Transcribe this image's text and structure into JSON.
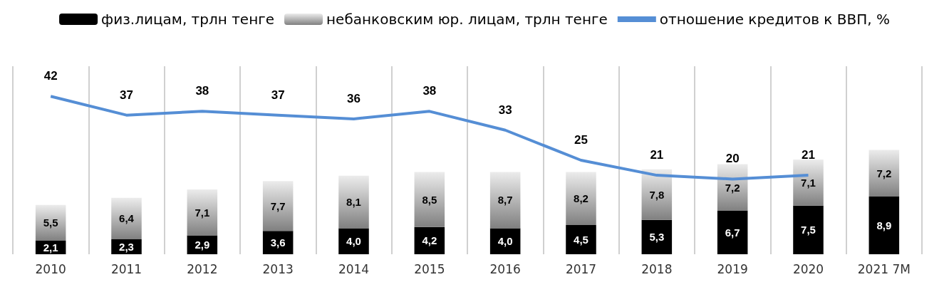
{
  "chart_data": {
    "type": "bar",
    "stacked": true,
    "categories": [
      "2010",
      "2011",
      "2012",
      "2013",
      "2014",
      "2015",
      "2016",
      "2017",
      "2018",
      "2019",
      "2020",
      "2021 7М"
    ],
    "series": [
      {
        "name": "физ.лицам, трлн тенге",
        "color": "#000000",
        "values": [
          2.1,
          2.3,
          2.9,
          3.6,
          4.0,
          4.2,
          4.0,
          4.5,
          5.3,
          6.7,
          7.5,
          8.9
        ],
        "value_labels": [
          "2,1",
          "2,3",
          "2,9",
          "3,6",
          "4,0",
          "4,2",
          "4,0",
          "4,5",
          "5,3",
          "6,7",
          "7,5",
          "8,9"
        ]
      },
      {
        "name": "небанковским юр. лицам, трлн тенге",
        "color": "#808080",
        "values": [
          5.5,
          6.4,
          7.1,
          7.7,
          8.1,
          8.5,
          8.7,
          8.2,
          7.8,
          7.2,
          7.1,
          7.2
        ],
        "value_labels": [
          "5,5",
          "6,4",
          "7,1",
          "7,7",
          "8,1",
          "8,5",
          "8,7",
          "8,2",
          "7,8",
          "7,2",
          "7,1",
          "7,2"
        ]
      },
      {
        "name": "отношение кредитов к ВВП, %",
        "type": "line",
        "axis": "y2",
        "color": "#558ed5",
        "values": [
          42,
          37,
          38,
          37,
          36,
          38,
          33,
          25,
          21,
          20,
          21,
          null
        ],
        "marker": "none"
      }
    ],
    "data_labels": true,
    "ylim": [
      0,
      29
    ],
    "y2lim": [
      0,
      50
    ],
    "tick_labels": "x",
    "grid": "x",
    "legend": "top"
  }
}
